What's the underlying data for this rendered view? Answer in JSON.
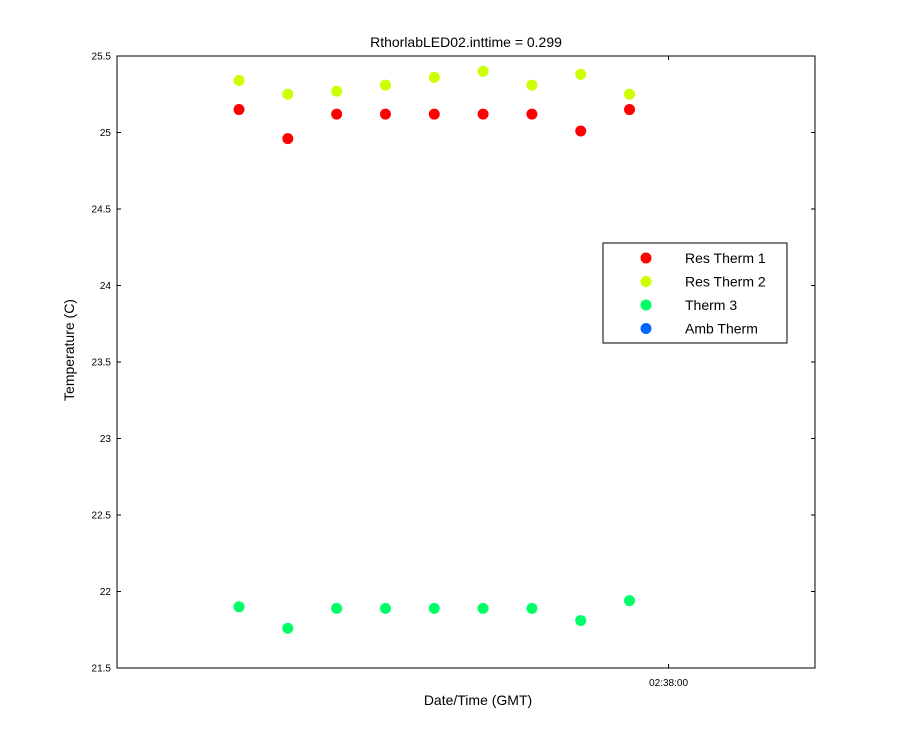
{
  "chart_data": {
    "type": "scatter",
    "title": "RthorlabLED02.inttime = 0.299",
    "xlabel": "Date/Time (GMT)",
    "ylabel": "Temperature (C)",
    "ylim": [
      21.5,
      25.5
    ],
    "yticks": [
      "21.5",
      "22",
      "22.5",
      "23",
      "23.5",
      "24",
      "24.5",
      "25",
      "25.5"
    ],
    "xticks": [
      "02:38:00"
    ],
    "xtick_index": 8.8,
    "xlim_index": [
      -2.5,
      11.8
    ],
    "grid": false,
    "legend_position": "right",
    "series": [
      {
        "name": "Res Therm 1",
        "color": "#ff0000",
        "values": [
          25.15,
          24.96,
          25.12,
          25.12,
          25.12,
          25.12,
          25.12,
          25.01,
          25.15
        ]
      },
      {
        "name": "Res Therm 2",
        "color": "#ccff00",
        "values": [
          25.34,
          25.25,
          25.27,
          25.31,
          25.36,
          25.4,
          25.31,
          25.38,
          25.25
        ]
      },
      {
        "name": "Therm 3",
        "color": "#00ff66",
        "values": [
          21.9,
          21.76,
          21.89,
          21.89,
          21.89,
          21.89,
          21.89,
          21.81,
          21.94
        ]
      },
      {
        "name": "Amb Therm",
        "color": "#0066ff",
        "values": []
      }
    ]
  }
}
